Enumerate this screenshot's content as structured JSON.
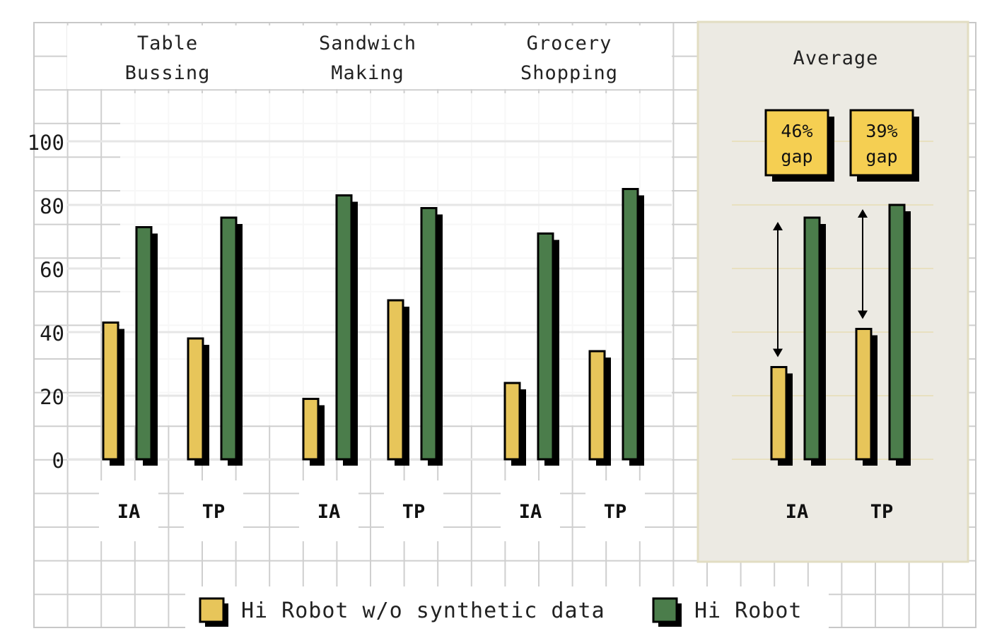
{
  "chart_data": {
    "type": "bar",
    "groups": [
      {
        "title": [
          "Table",
          "Bussing"
        ],
        "categories": [
          "IA",
          "TP"
        ],
        "values": {
          "Hi Robot w/o synthetic data": [
            43,
            38
          ],
          "Hi Robot": [
            73,
            76
          ]
        }
      },
      {
        "title": [
          "Sandwich",
          "Making"
        ],
        "categories": [
          "IA",
          "TP"
        ],
        "values": {
          "Hi Robot w/o synthetic data": [
            19,
            50
          ],
          "Hi Robot": [
            83,
            79
          ]
        }
      },
      {
        "title": [
          "Grocery",
          "Shopping"
        ],
        "categories": [
          "IA",
          "TP"
        ],
        "values": {
          "Hi Robot w/o synthetic data": [
            24,
            34
          ],
          "Hi Robot": [
            71,
            85
          ]
        }
      },
      {
        "title": [
          "Average"
        ],
        "categories": [
          "IA",
          "TP"
        ],
        "values": {
          "Hi Robot w/o synthetic data": [
            29,
            41
          ],
          "Hi Robot": [
            76,
            80
          ]
        },
        "annotations": [
          {
            "lines": [
              "46%",
              "gap"
            ],
            "category": "IA"
          },
          {
            "lines": [
              "39%",
              "gap"
            ],
            "category": "TP"
          }
        ]
      }
    ],
    "series": [
      {
        "name": "Hi Robot w/o synthetic data",
        "color": "#e7c55a"
      },
      {
        "name": "Hi Robot",
        "color": "#4b7d4b"
      }
    ],
    "yticks": [
      0,
      20,
      40,
      60,
      80,
      100
    ],
    "ylim": [
      0,
      100
    ],
    "grid": true,
    "legend_position": "bottom-center"
  }
}
